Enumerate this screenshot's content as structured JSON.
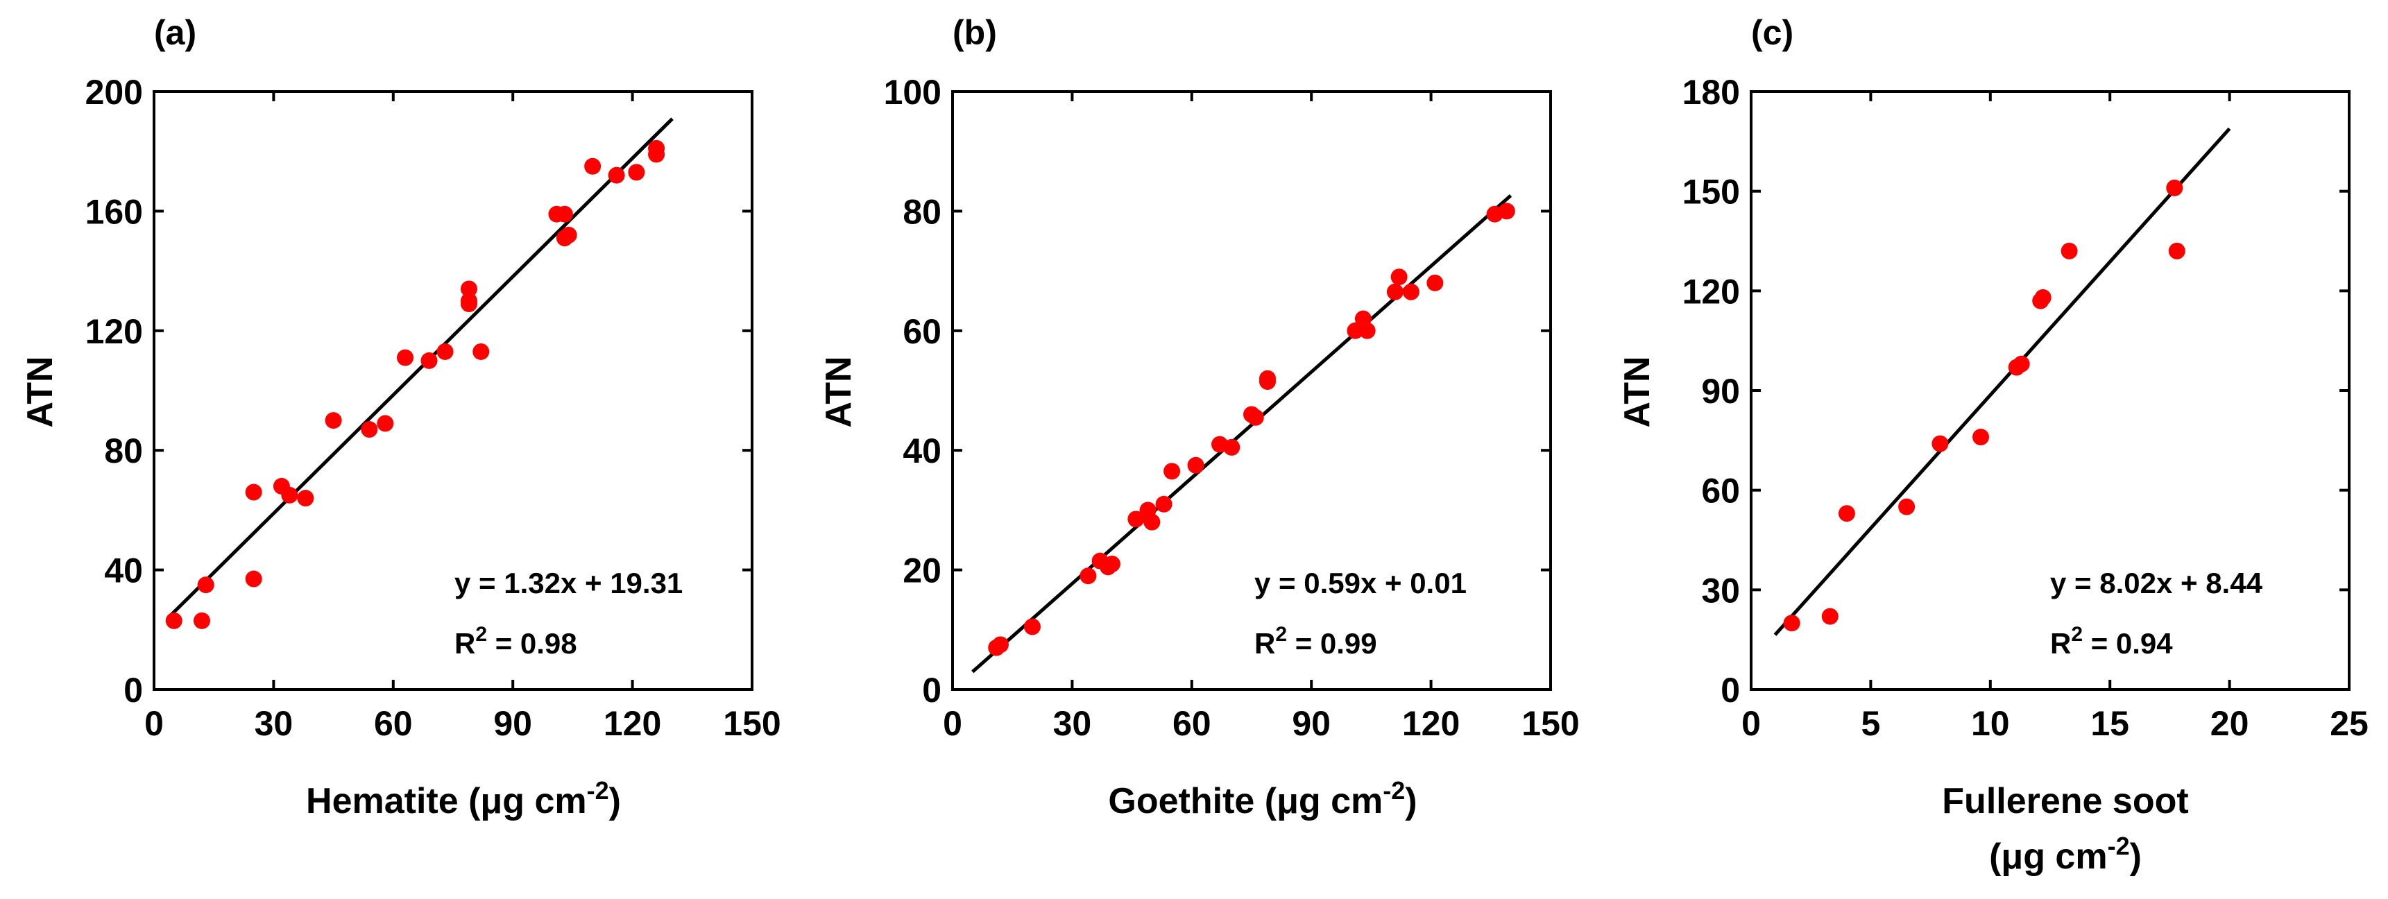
{
  "chart_data": [
    {
      "type": "scatter",
      "panel_label": "(a)",
      "xlabel": "Hematite (μg cm",
      "xlabel_sup": "-2",
      "xlabel_close": ")",
      "ylabel": "ATN",
      "xlim": [
        0,
        150
      ],
      "ylim": [
        0,
        200
      ],
      "xticks": [
        "0",
        "30",
        "60",
        "90",
        "120",
        "150"
      ],
      "yticks": [
        "0",
        "40",
        "80",
        "120",
        "160",
        "200"
      ],
      "x": [
        5,
        12,
        13,
        25,
        25,
        32,
        34,
        38,
        45,
        54,
        58,
        63,
        69,
        73,
        79,
        79,
        79,
        82,
        101,
        103,
        103,
        104,
        110,
        116,
        121,
        126,
        126
      ],
      "y": [
        23,
        23,
        35,
        37,
        66,
        68,
        65,
        64,
        90,
        87,
        89,
        111,
        110,
        113,
        129,
        130,
        134,
        113,
        159,
        159,
        151,
        152,
        175,
        172,
        173,
        181,
        179
      ],
      "fit": {
        "slope": 1.32,
        "intercept": 19.31,
        "x_range": [
          4,
          130
        ]
      },
      "equation": "y = 1.32x + 19.31",
      "r2_label": "R",
      "r2_sup": "2",
      "r2_value": " = 0.98",
      "marker_color": "#ff0000",
      "line_color": "#000000"
    },
    {
      "type": "scatter",
      "panel_label": "(b)",
      "xlabel": "Goethite (μg cm",
      "xlabel_sup": "-2",
      "xlabel_close": ")",
      "ylabel": "ATN",
      "xlim": [
        0,
        150
      ],
      "ylim": [
        0,
        100
      ],
      "xticks": [
        "0",
        "30",
        "60",
        "90",
        "120",
        "150"
      ],
      "yticks": [
        "0",
        "20",
        "40",
        "60",
        "80",
        "100"
      ],
      "x": [
        11,
        12,
        20,
        34,
        37,
        39,
        40,
        46,
        49,
        50,
        53,
        55,
        61,
        67,
        70,
        75,
        76,
        79,
        79,
        101,
        103,
        104,
        111,
        112,
        115,
        121,
        136,
        139
      ],
      "y": [
        7,
        7.5,
        10.5,
        19,
        21.5,
        20.5,
        21,
        28.5,
        30,
        28,
        31,
        36.5,
        37.5,
        41,
        40.5,
        46,
        45.5,
        51.5,
        52,
        60,
        62,
        60,
        66.5,
        69,
        66.5,
        68,
        79.5,
        80
      ],
      "fit": {
        "slope": 0.59,
        "intercept": 0.01,
        "x_range": [
          5,
          140
        ]
      },
      "equation": "y = 0.59x + 0.01",
      "r2_label": "R",
      "r2_sup": "2",
      "r2_value": " = 0.99",
      "marker_color": "#ff0000",
      "line_color": "#000000"
    },
    {
      "type": "scatter",
      "panel_label": "(c)",
      "xlabel": "Fullerene soot",
      "xlabel_line2": "(μg cm",
      "xlabel_sup": "-2",
      "xlabel_close": ")",
      "ylabel": "ATN",
      "xlim": [
        0,
        25
      ],
      "ylim": [
        0,
        180
      ],
      "xticks": [
        "0",
        "5",
        "10",
        "15",
        "20",
        "25"
      ],
      "yticks": [
        "0",
        "30",
        "60",
        "90",
        "120",
        "150",
        "180"
      ],
      "x": [
        1.7,
        3.3,
        4.0,
        6.5,
        7.9,
        9.6,
        11.1,
        11.3,
        12.1,
        12.2,
        13.3,
        17.7,
        17.8
      ],
      "y": [
        20,
        22,
        53,
        55,
        74,
        76,
        97,
        98,
        117,
        118,
        132,
        151,
        132
      ],
      "fit": {
        "slope": 8.02,
        "intercept": 8.44,
        "x_range": [
          1,
          20
        ]
      },
      "equation": "y = 8.02x + 8.44",
      "r2_label": "R",
      "r2_sup": "2",
      "r2_value": " = 0.94",
      "marker_color": "#ff0000",
      "line_color": "#000000"
    }
  ]
}
